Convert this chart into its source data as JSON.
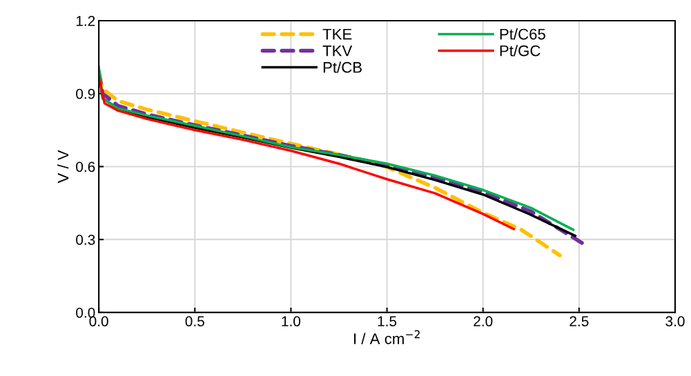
{
  "chart_data": {
    "type": "line",
    "xlabel": "I / A cm$^{−2}$",
    "ylabel": "V / V",
    "xlim": [
      0,
      3
    ],
    "ylim": [
      0,
      1.2
    ],
    "xticks": [
      {
        "value": 0,
        "label": "0.0"
      },
      {
        "value": 0.5,
        "label": "0.5"
      },
      {
        "value": 1,
        "label": "1.0"
      },
      {
        "value": 1.5,
        "label": "1.5"
      },
      {
        "value": 2,
        "label": "2.0"
      },
      {
        "value": 2.5,
        "label": "2.5"
      },
      {
        "value": 3,
        "label": "3.0"
      }
    ],
    "yticks": [
      {
        "value": 0,
        "label": "0.0"
      },
      {
        "value": 0.3,
        "label": "0.3"
      },
      {
        "value": 0.6,
        "label": "0.6"
      },
      {
        "value": 0.9,
        "label": "0.9"
      },
      {
        "value": 1.2,
        "label": "1.2"
      }
    ],
    "grid": true,
    "legend": "top",
    "marker": "none",
    "series": [
      {
        "name": "TKE",
        "color": "#ffc000",
        "line_style": "dashed",
        "x": [
          0,
          0.02,
          0.1,
          0.25,
          0.5,
          0.75,
          1.0,
          1.25,
          1.5,
          1.75,
          2.0,
          2.2,
          2.4
        ],
        "values": [
          0.98,
          0.92,
          0.87,
          0.835,
          0.787,
          0.74,
          0.694,
          0.65,
          0.598,
          0.513,
          0.41,
          0.34,
          0.235
        ]
      },
      {
        "name": "TKV",
        "color": "#7030a0",
        "line_style": "dashed",
        "x": [
          0,
          0.02,
          0.1,
          0.25,
          0.5,
          0.75,
          1.0,
          1.25,
          1.5,
          1.75,
          2.0,
          2.25,
          2.515
        ],
        "values": [
          0.99,
          0.9,
          0.85,
          0.815,
          0.77,
          0.728,
          0.685,
          0.648,
          0.605,
          0.555,
          0.495,
          0.415,
          0.286
        ]
      },
      {
        "name": "Pt/CB",
        "color": "#000000",
        "line_style": "solid",
        "x": [
          0,
          0.02,
          0.1,
          0.25,
          0.5,
          0.75,
          1.0,
          1.25,
          1.5,
          1.75,
          2.0,
          2.24,
          2.48
        ],
        "values": [
          0.99,
          0.88,
          0.84,
          0.805,
          0.76,
          0.72,
          0.678,
          0.64,
          0.598,
          0.545,
          0.485,
          0.405,
          0.315
        ]
      },
      {
        "name": "Pt/C65",
        "color": "#00b050",
        "line_style": "solid",
        "x": [
          0,
          0.02,
          0.1,
          0.25,
          0.5,
          0.75,
          1.0,
          1.25,
          1.5,
          1.75,
          2.0,
          2.25,
          2.47
        ],
        "values": [
          1.01,
          0.88,
          0.84,
          0.81,
          0.768,
          0.725,
          0.68,
          0.648,
          0.612,
          0.563,
          0.504,
          0.43,
          0.34
        ]
      },
      {
        "name": "Pt/GC",
        "color": "#ff0000",
        "line_style": "solid",
        "x": [
          0,
          0.03,
          0.1,
          0.25,
          0.5,
          0.75,
          1.0,
          1.25,
          1.5,
          1.75,
          2.0,
          2.16
        ],
        "values": [
          0.97,
          0.86,
          0.83,
          0.796,
          0.75,
          0.71,
          0.665,
          0.612,
          0.548,
          0.49,
          0.405,
          0.343
        ]
      }
    ]
  }
}
